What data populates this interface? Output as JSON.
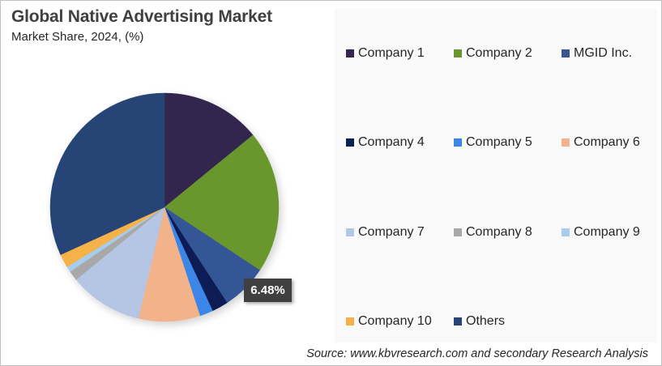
{
  "header": {
    "title": "Global Native Advertising Market",
    "subtitle": "Market Share, 2024, (%)"
  },
  "chart_data": {
    "type": "pie",
    "title": "Global Native Advertising Market",
    "subtitle": "Market Share, 2024, (%)",
    "start_angle": "12 o'clock, clockwise",
    "categories": [
      "Company 1",
      "Company 2",
      "MGID Inc.",
      "Company 4",
      "Company 5",
      "Company 6",
      "Company 7",
      "Company 8",
      "Company 9",
      "Company 10",
      "Others"
    ],
    "values": [
      14.1,
      20.2,
      6.48,
      2.3,
      1.9,
      8.7,
      10.4,
      1.4,
      0.8,
      1.9,
      31.82
    ],
    "colors": [
      "#33254f",
      "#6a962e",
      "#355796",
      "#0c1d55",
      "#3a86e6",
      "#f2b38a",
      "#b4c6e4",
      "#a8a8a8",
      "#a7cdee",
      "#f5b24a",
      "#264476"
    ],
    "data_labels": [
      {
        "category": "MGID Inc.",
        "text": "6.48%"
      }
    ],
    "legend_position": "right",
    "source": "Source: www.kbvresearch.com and secondary Research Analysis"
  },
  "legend": {
    "items": [
      {
        "label": "Company 1",
        "color": "#33254f"
      },
      {
        "label": "Company 2",
        "color": "#6a962e"
      },
      {
        "label": "MGID Inc.",
        "color": "#355796"
      },
      {
        "label": "Company 4",
        "color": "#0c1d55"
      },
      {
        "label": "Company 5",
        "color": "#3a86e6"
      },
      {
        "label": "Company 6",
        "color": "#f2b38a"
      },
      {
        "label": "Company 7",
        "color": "#b4c6e4"
      },
      {
        "label": "Company 8",
        "color": "#a8a8a8"
      },
      {
        "label": "Company 9",
        "color": "#a7cdee"
      },
      {
        "label": "Company 10",
        "color": "#f5b24a"
      },
      {
        "label": "Others",
        "color": "#264476"
      }
    ]
  },
  "data_label": {
    "text": "6.48%"
  },
  "footer": {
    "source": "Source: www.kbvresearch.com and secondary Research Analysis"
  }
}
